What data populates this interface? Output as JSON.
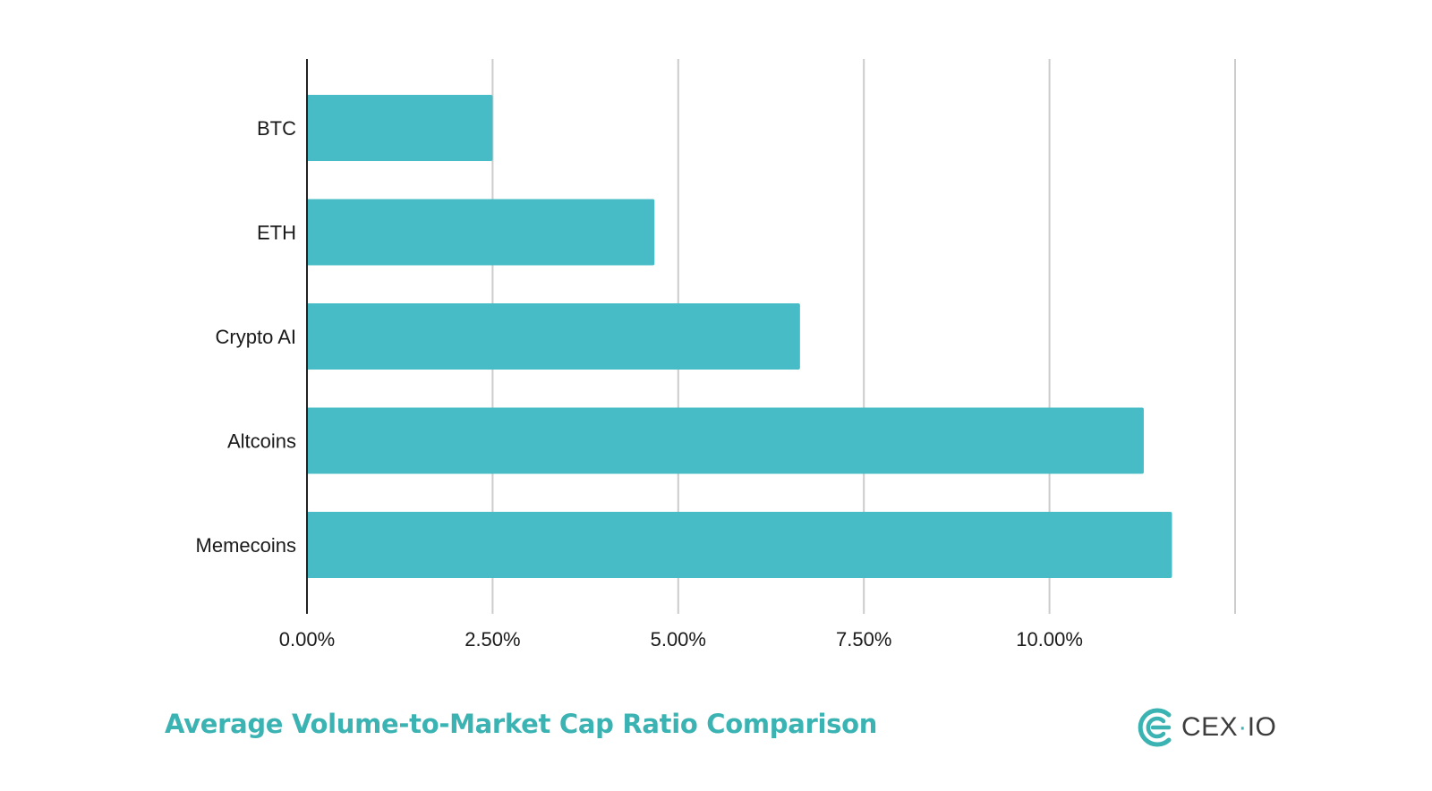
{
  "chart_data": {
    "type": "bar",
    "orientation": "horizontal",
    "categories": [
      "BTC",
      "ETH",
      "Crypto AI",
      "Altcoins",
      "Memecoins"
    ],
    "values": [
      2.5,
      4.68,
      6.64,
      11.27,
      11.65
    ],
    "title": "Average Volume-to-Market Cap Ratio Comparison",
    "xlabel": "",
    "ylabel": "",
    "xlim": [
      0,
      12.5
    ],
    "ticks": [
      {
        "value": 0,
        "label": "0.00%"
      },
      {
        "value": 2.5,
        "label": "2.50%"
      },
      {
        "value": 5,
        "label": "5.00%"
      },
      {
        "value": 7.5,
        "label": "7.50%"
      },
      {
        "value": 10,
        "label": "10.00%"
      },
      {
        "value": 12.5,
        "label": ""
      }
    ],
    "grid": true,
    "legend": "none",
    "bar_color": "#47bcc6",
    "grid_color": "#cccccc",
    "axis_color": "#222222"
  },
  "brand": {
    "name": "CEX",
    "suffix": "IO",
    "separator": "·",
    "logo_icon": "cex-io-logo-icon",
    "color": "#3bb3b3"
  }
}
